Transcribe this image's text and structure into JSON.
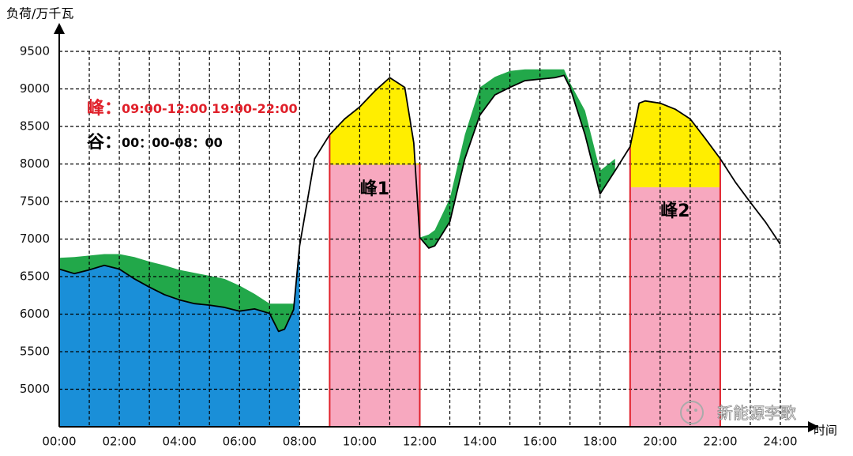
{
  "chart_data": {
    "type": "line",
    "y_axis_label": "负荷/万千瓦",
    "x_axis_label": "时间",
    "x": [
      0,
      0.5,
      1,
      1.5,
      2,
      2.5,
      3,
      3.5,
      4,
      4.5,
      5,
      5.5,
      6,
      6.5,
      7,
      7.3,
      7.5,
      7.8,
      8,
      8.5,
      9,
      9.5,
      10,
      10.5,
      11,
      11.5,
      11.8,
      12,
      12.3,
      12.5,
      13,
      13.5,
      14,
      14.5,
      15,
      15.5,
      16,
      16.5,
      16.8,
      17,
      17.5,
      18,
      18.5,
      19,
      19.3,
      19.5,
      20,
      20.5,
      21,
      21.5,
      22,
      22.5,
      23,
      23.5,
      24
    ],
    "series": [
      {
        "color": "#000000",
        "values": [
          6600,
          6540,
          6590,
          6650,
          6600,
          6470,
          6360,
          6260,
          6190,
          6140,
          6120,
          6090,
          6040,
          6070,
          6010,
          5770,
          5800,
          6060,
          6910,
          8070,
          8390,
          8600,
          8760,
          8970,
          9150,
          9020,
          8280,
          7020,
          6880,
          6910,
          7230,
          8070,
          8650,
          8920,
          9020,
          9110,
          9130,
          9150,
          9180,
          9020,
          8390,
          7600,
          7910,
          8230,
          8810,
          8840,
          8810,
          8730,
          8600,
          8340,
          8070,
          7760,
          7490,
          7230,
          6930
        ]
      },
      {
        "color": "#22a84a",
        "values": [
          6750,
          6760,
          6780,
          6800,
          6800,
          6760,
          6700,
          6650,
          6590,
          6550,
          6510,
          6470,
          6380,
          6270,
          6140,
          6140,
          6140,
          6140,
          null,
          null,
          null,
          null,
          null,
          null,
          null,
          null,
          null,
          7020,
          7060,
          7120,
          7540,
          8390,
          9020,
          9160,
          9240,
          9260,
          9260,
          9260,
          9260,
          9080,
          8710,
          7910,
          8070,
          null,
          null,
          null,
          null,
          null,
          null,
          null,
          null,
          null,
          null,
          null,
          null
        ]
      }
    ],
    "xlim": [
      0,
      24
    ],
    "ylim": [
      4500,
      9500
    ],
    "xticks": [
      {
        "value": 0,
        "label": "00:00"
      },
      {
        "value": 2,
        "label": "02:00"
      },
      {
        "value": 4,
        "label": "04:00"
      },
      {
        "value": 6,
        "label": "06:00"
      },
      {
        "value": 8,
        "label": "08:00"
      },
      {
        "value": 10,
        "label": "10:00"
      },
      {
        "value": 12,
        "label": "12:00"
      },
      {
        "value": 14,
        "label": "14:00"
      },
      {
        "value": 16,
        "label": "16:00"
      },
      {
        "value": 18,
        "label": "18:00"
      },
      {
        "value": 20,
        "label": "20:00"
      },
      {
        "value": 22,
        "label": "22:00"
      },
      {
        "value": 24,
        "label": "24:00"
      }
    ],
    "xminorticks": [
      1,
      3,
      5,
      7,
      9,
      11,
      13,
      15,
      17,
      19,
      21,
      23
    ],
    "yticks": [
      5000,
      5500,
      6000,
      6500,
      7000,
      7500,
      8000,
      8500,
      9000,
      9500
    ],
    "grid": true,
    "valley": {
      "start": 0,
      "end": 8,
      "color": "#1a8fd8"
    },
    "peaks": [
      {
        "start": 9,
        "end": 12,
        "base": 8000,
        "label": "峰1",
        "color": "#ffee00",
        "base_color": "#f7a8bf"
      },
      {
        "start": 19,
        "end": 22,
        "base": 7700,
        "label": "峰2",
        "color": "#ffee00",
        "base_color": "#f7a8bf"
      }
    ],
    "peak_note": {
      "label": "峰：",
      "text": "09:00-12:00 19:00-22:00"
    },
    "valley_note": {
      "label": "谷：",
      "text": "00：00-08：00"
    },
    "watermark": "新能源李歌"
  }
}
